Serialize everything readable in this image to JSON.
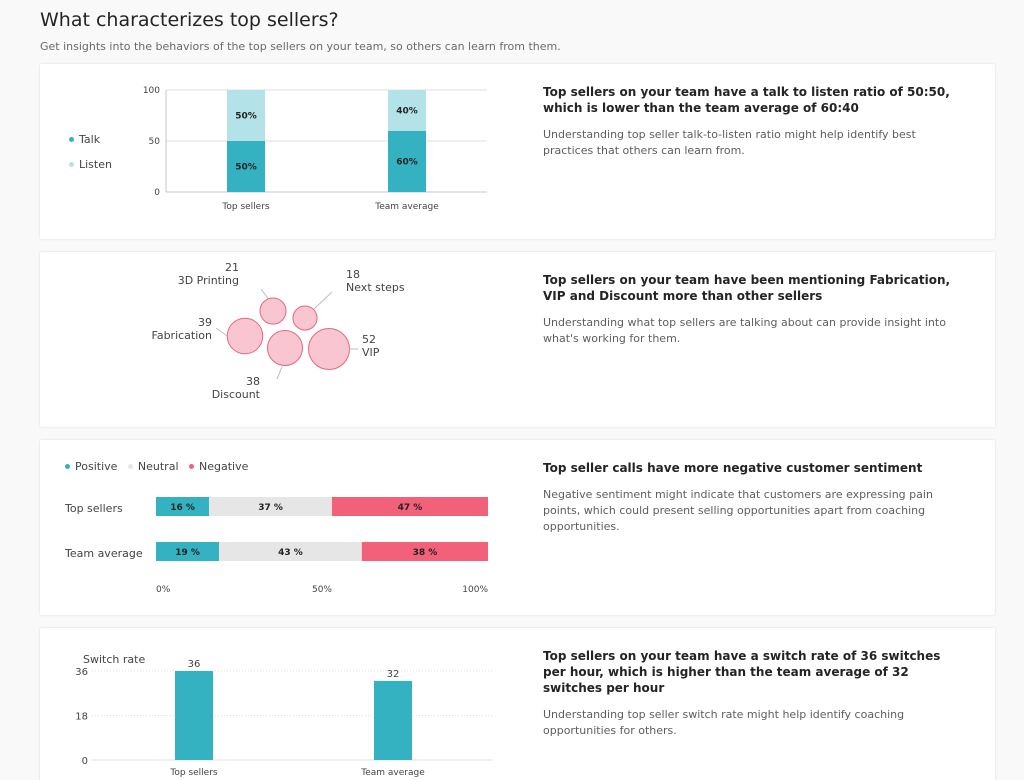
{
  "header": {
    "title": "What characterizes top sellers?",
    "subtitle": "Get insights into the behaviors of the top sellers on your team, so others can learn from them."
  },
  "colors": {
    "teal": "#35b2c2",
    "light_teal": "#b3e2e9",
    "grey": "#e6e6e6",
    "pink": "#f2607a",
    "bubble_fill": "#f8c5d0",
    "bubble_stroke": "#e46981"
  },
  "cards": {
    "talk_listen": {
      "legend": {
        "talk": "Talk",
        "listen": "Listen"
      },
      "insight_title": "Top sellers on your team have a talk to listen ratio of 50:50, which is lower than the team average of 60:40",
      "insight_desc": "Understanding top seller talk-to-listen ratio might help identify best practices that others can learn from."
    },
    "keywords": {
      "insight_title_parts": [
        "Top sellers on your team have been mentioning ",
        "Fabrication",
        ", ",
        "VIP",
        " and ",
        "Discount",
        " more than other sellers"
      ],
      "insight_desc": "Understanding what top sellers are talking about can provide insight into what's working for them."
    },
    "sentiment": {
      "legend": {
        "positive": "Positive",
        "neutral": "Neutral",
        "negative": "Negative"
      },
      "insight_title": "Top seller calls have more negative customer sentiment",
      "insight_desc": "Negative sentiment might indicate that customers are expressing pain points, which could present selling opportunities apart from coaching opportunities."
    },
    "switch_rate": {
      "insight_title": "Top sellers on your team have a switch rate of 36 switches per hour, which is higher than the team average of 32 switches per hour",
      "insight_desc": "Understanding top seller switch rate might help identify coaching opportunities for others."
    }
  },
  "chart_data": [
    {
      "type": "bar",
      "stacked": true,
      "categories": [
        "Top sellers",
        "Team average"
      ],
      "series": [
        {
          "name": "Talk",
          "values": [
            50,
            60
          ],
          "labels": [
            "50%",
            "60%"
          ]
        },
        {
          "name": "Listen",
          "values": [
            50,
            40
          ],
          "labels": [
            "50%",
            "40%"
          ]
        }
      ],
      "yticks": [
        "0",
        "50",
        "100"
      ],
      "ylim": [
        0,
        100
      ],
      "legend": "left"
    },
    {
      "type": "scatter",
      "subtype": "bubble",
      "points": [
        {
          "label": "3D Printing",
          "value": 21,
          "value_label": "21"
        },
        {
          "label": "Next steps",
          "value": 18,
          "value_label": "18"
        },
        {
          "label": "Fabrication",
          "value": 39,
          "value_label": "39"
        },
        {
          "label": "Discount",
          "value": 38,
          "value_label": "38"
        },
        {
          "label": "VIP",
          "value": 52,
          "value_label": "52"
        }
      ]
    },
    {
      "type": "bar",
      "orientation": "horizontal",
      "stacked": true,
      "normalized": true,
      "categories": [
        "Top sellers",
        "Team average"
      ],
      "series": [
        {
          "name": "Positive",
          "values": [
            16,
            19
          ],
          "labels": [
            "16 %",
            "19 %"
          ]
        },
        {
          "name": "Neutral",
          "values": [
            37,
            43
          ],
          "labels": [
            "37 %",
            "43 %"
          ]
        },
        {
          "name": "Negative",
          "values": [
            47,
            38
          ],
          "labels": [
            "47 %",
            "38 %"
          ]
        }
      ],
      "xticks": [
        "0%",
        "50%",
        "100%"
      ],
      "xlim": [
        0,
        100
      ],
      "legend": "top-left"
    },
    {
      "type": "bar",
      "categories": [
        "Top sellers",
        "Team average"
      ],
      "values": [
        36,
        32
      ],
      "value_labels": [
        "36",
        "32"
      ],
      "ylabel": "Switch rate",
      "yticks": [
        "0",
        "18",
        "36"
      ],
      "ylim": [
        0,
        36
      ]
    }
  ]
}
